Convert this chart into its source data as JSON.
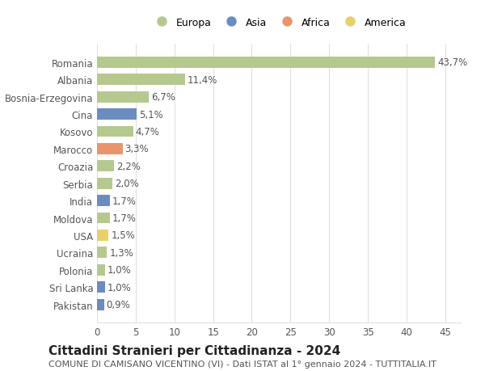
{
  "countries": [
    "Romania",
    "Albania",
    "Bosnia-Erzegovina",
    "Cina",
    "Kosovo",
    "Marocco",
    "Croazia",
    "Serbia",
    "India",
    "Moldova",
    "USA",
    "Ucraina",
    "Polonia",
    "Sri Lanka",
    "Pakistan"
  ],
  "values": [
    43.7,
    11.4,
    6.7,
    5.1,
    4.7,
    3.3,
    2.2,
    2.0,
    1.7,
    1.7,
    1.5,
    1.3,
    1.0,
    1.0,
    0.9
  ],
  "labels": [
    "43,7%",
    "11,4%",
    "6,7%",
    "5,1%",
    "4,7%",
    "3,3%",
    "2,2%",
    "2,0%",
    "1,7%",
    "1,7%",
    "1,5%",
    "1,3%",
    "1,0%",
    "1,0%",
    "0,9%"
  ],
  "continents": [
    "Europa",
    "Europa",
    "Europa",
    "Asia",
    "Europa",
    "Africa",
    "Europa",
    "Europa",
    "Asia",
    "Europa",
    "America",
    "Europa",
    "Europa",
    "Asia",
    "Asia"
  ],
  "continent_colors": {
    "Europa": "#b5c98e",
    "Asia": "#6b8cbf",
    "Africa": "#e8956d",
    "America": "#e8d06b"
  },
  "legend_order": [
    "Europa",
    "Asia",
    "Africa",
    "America"
  ],
  "title": "Cittadini Stranieri per Cittadinanza - 2024",
  "subtitle": "COMUNE DI CAMISANO VICENTINO (VI) - Dati ISTAT al 1° gennaio 2024 - TUTTITALIA.IT",
  "xlim": [
    0,
    47
  ],
  "xticks": [
    0,
    5,
    10,
    15,
    20,
    25,
    30,
    35,
    40,
    45
  ],
  "background_color": "#ffffff",
  "grid_color": "#e0e0e0",
  "bar_height": 0.65,
  "label_fontsize": 8.5,
  "tick_fontsize": 8.5,
  "title_fontsize": 11,
  "subtitle_fontsize": 8
}
